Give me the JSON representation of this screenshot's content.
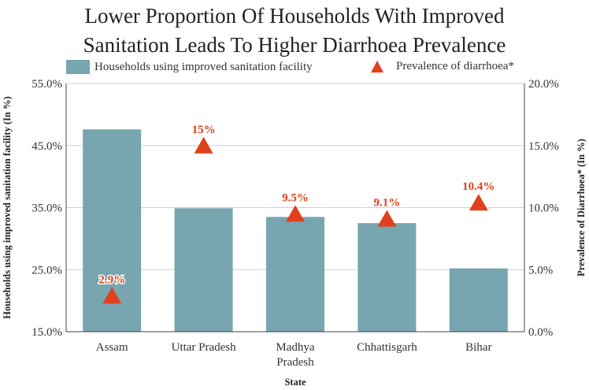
{
  "chart_data": {
    "type": "bar",
    "title_lines": [
      "Lower Proportion Of Households With Improved",
      "Sanitation Leads To Higher Diarrhoea Prevalence"
    ],
    "categories": [
      "Assam",
      "Uttar Pradesh",
      "Madhya Pradesh",
      "Chhattisgarh",
      "Bihar"
    ],
    "category_lines": [
      [
        "Assam"
      ],
      [
        "Uttar Pradesh"
      ],
      [
        "Madhya",
        "Pradesh"
      ],
      [
        "Chhattisgarh"
      ],
      [
        "Bihar"
      ]
    ],
    "xlabel": "State",
    "y_left": {
      "label": "Households using improved sanitation facility (In %)",
      "range": [
        15,
        55
      ],
      "ticks": [
        15,
        25,
        35,
        45,
        55
      ],
      "tick_labels": [
        "15.0%",
        "25.0%",
        "35.0%",
        "45.0%",
        "55.0%"
      ]
    },
    "y_right": {
      "label": "Prevalence of Diarrhoea* (In %)",
      "range": [
        0,
        20
      ],
      "ticks": [
        0,
        5,
        10,
        15,
        20
      ],
      "tick_labels": [
        "0.0%",
        "5.0%",
        "10.0%",
        "15.0%",
        "20.0%"
      ]
    },
    "series": [
      {
        "name": "Households using improved sanitation facility",
        "type": "bar",
        "axis": "left",
        "color": "#77a5b0",
        "values": [
          47.6,
          34.9,
          33.5,
          32.5,
          25.2
        ]
      },
      {
        "name": "Prevalence of diarrhoea*",
        "type": "scatter",
        "marker": "triangle",
        "axis": "right",
        "color": "#e0401c",
        "values": [
          2.9,
          15.0,
          9.5,
          9.1,
          10.4
        ],
        "labels": [
          "2.9%",
          "15%",
          "9.5%",
          "9.1%",
          "10.4%"
        ]
      }
    ],
    "grid": true,
    "legend_position": "top"
  }
}
